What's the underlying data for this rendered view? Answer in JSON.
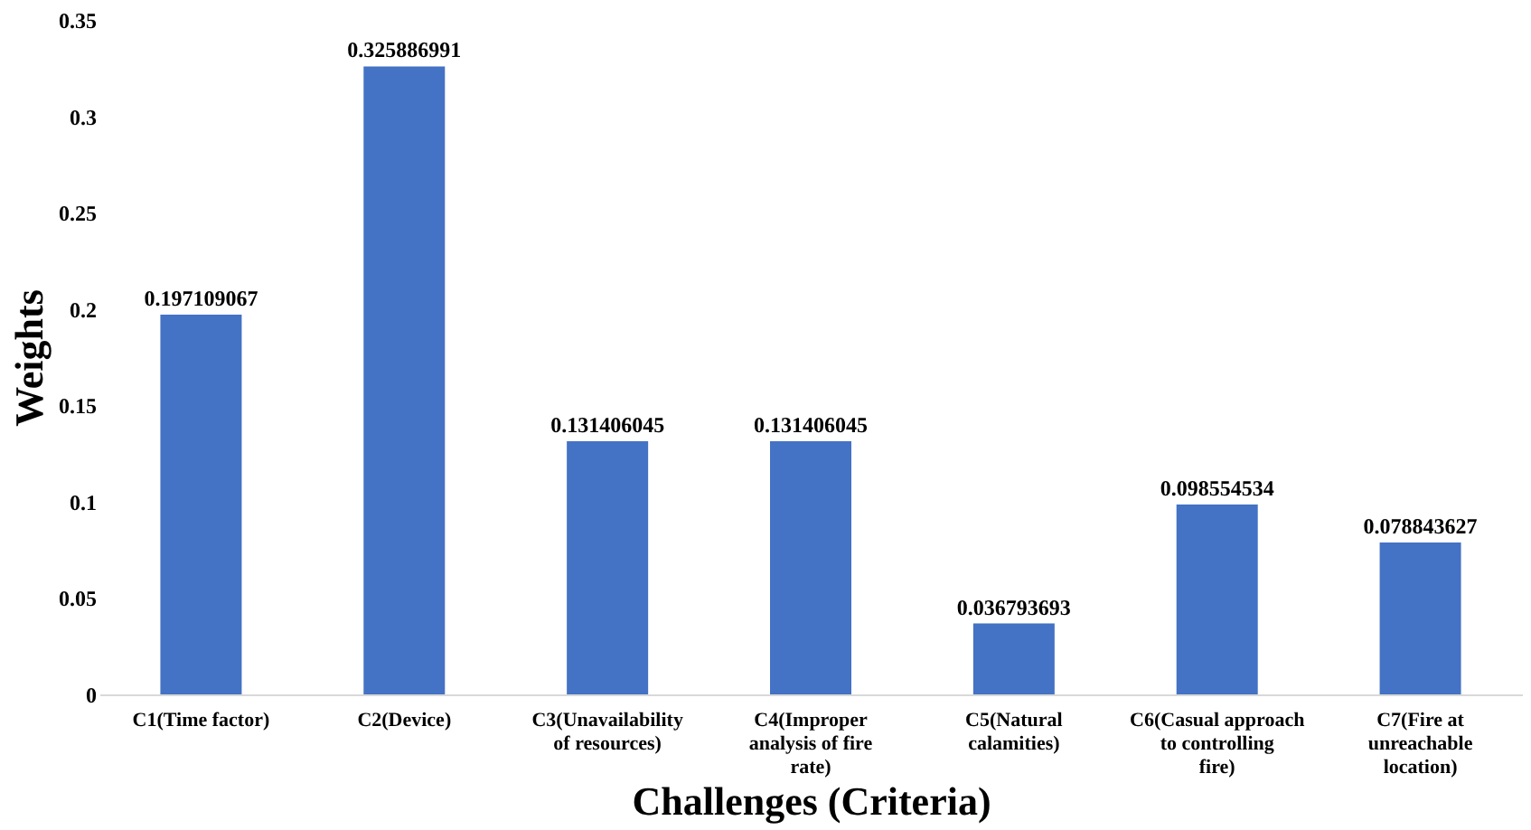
{
  "chart_data": {
    "type": "bar",
    "xlabel": "Challenges (Criteria)",
    "ylabel": "Weights",
    "categories": [
      "C1(Time factor)",
      "C2(Device)",
      "C3(Unavailability of resources)",
      "C4(Improper analysis of fire rate)",
      "C5(Natural calamities)",
      "C6(Casual approach to controlling fire)",
      "C7(Fire at unreachable location)"
    ],
    "values": [
      0.197109067,
      0.325886991,
      0.131406045,
      0.131406045,
      0.036793693,
      0.098554534,
      0.078843627
    ],
    "color": "#4472c4",
    "data_labels": true,
    "grid": false,
    "ylim": [
      0,
      0.35
    ],
    "yticks": [
      0,
      0.05,
      0.1,
      0.15,
      0.2,
      0.25,
      0.3,
      0.35
    ]
  }
}
